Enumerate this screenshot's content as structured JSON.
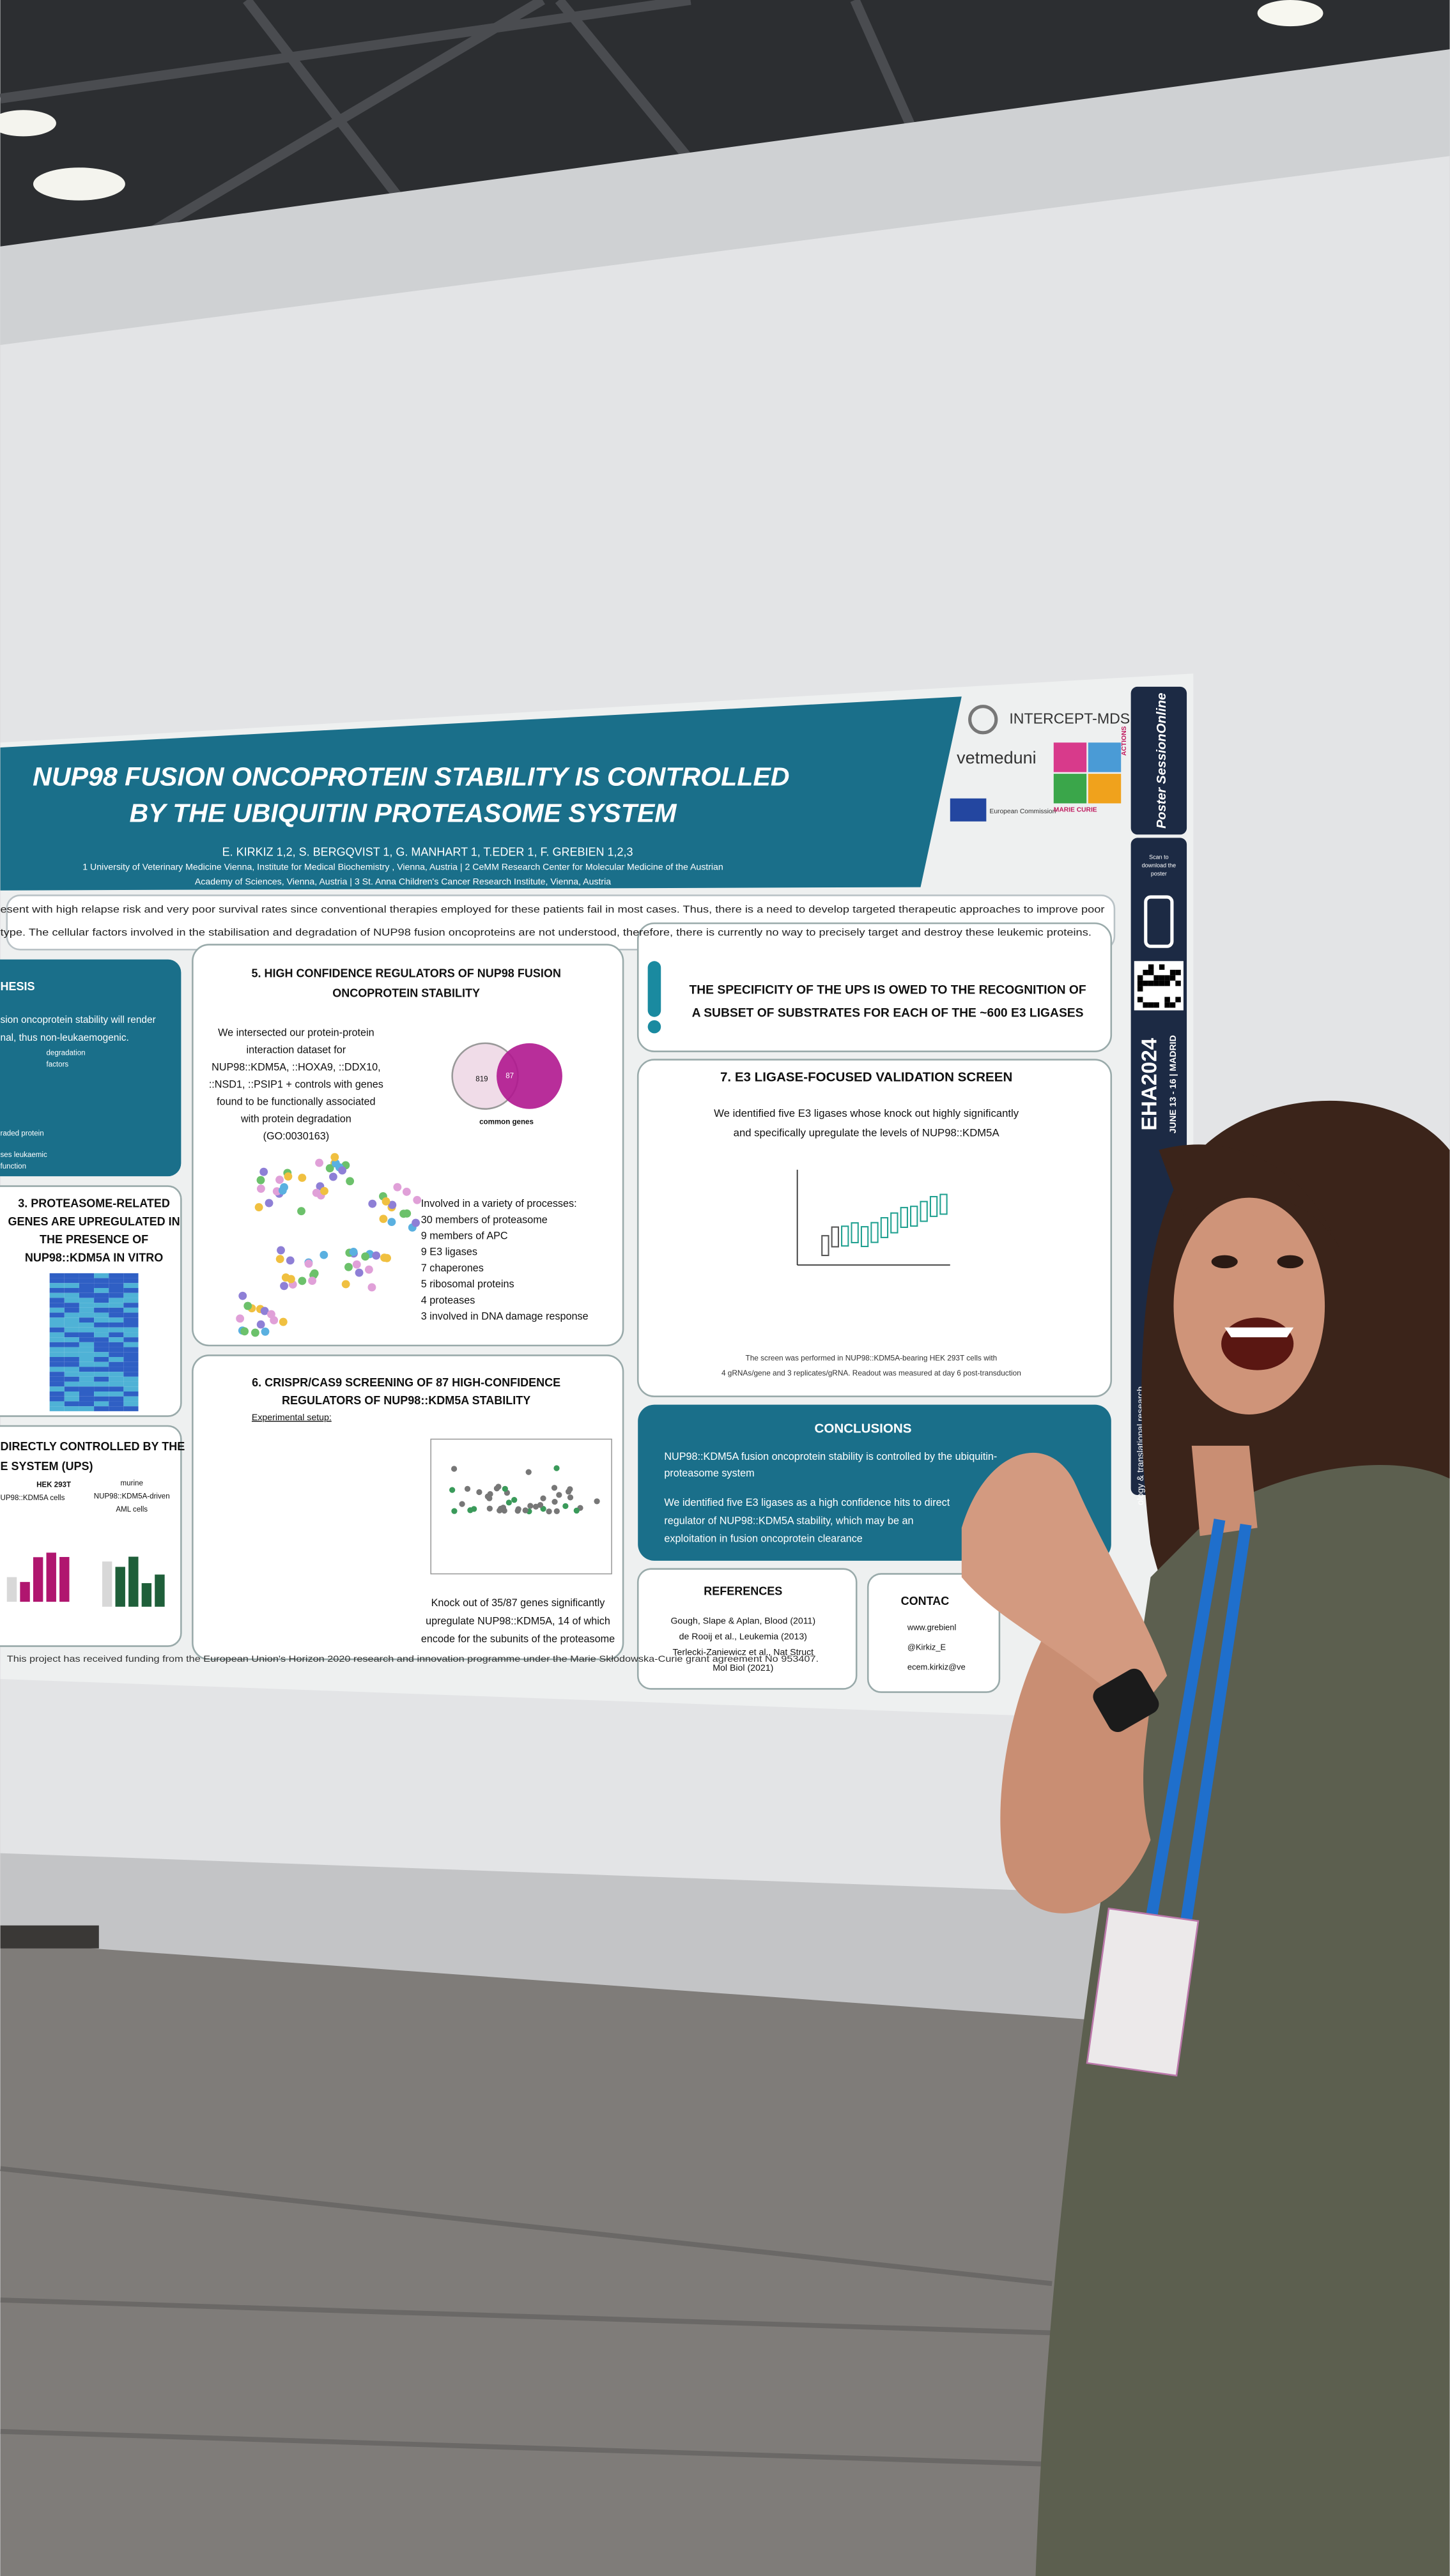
{
  "poster": {
    "title": [
      "NUP98 FUSION ONCOPROTEIN STABILITY IS CONTROLLED",
      "BY THE UBIQUITIN PROTEASOME SYSTEM"
    ],
    "authors": "E. KIRKIZ 1,2, S. BERGQVIST 1, G. MANHART 1, T.EDER 1, F. GREBIEN 1,2,3",
    "affiliations": [
      "1 University of Veterinary Medicine Vienna, Institute for Medical Biochemistry , Vienna, Austria | 2 CeMM Research Center for Molecular Medicine of the Austrian",
      "Academy of Sciences, Vienna, Austria | 3 St. Anna Children's Cancer Research Institute, Vienna, Austria"
    ],
    "logos": [
      "INTERCEPT-MDS",
      "vetmeduni",
      "European Commission",
      "MARIE CURIE",
      "ACTIONS"
    ],
    "intro": [
      "esent with high relapse risk and very poor survival rates since conventional therapies employed for these patients fail in most cases. Thus, there is a need to develop targeted therapeutic approaches to improve poor",
      "type. The cellular factors involved in the stabilisation and degradation of NUP98 fusion oncoproteins are not understood, therefore, there is currently no way to precisely target and destroy these leukemic proteins."
    ],
    "hypothesis": {
      "heading": "HESIS",
      "body": [
        "sion oncoprotein stability will render",
        "nal, thus non-leukaemogenic."
      ],
      "labels": [
        "degradation",
        "factors",
        "raded protein",
        "ses leukaemic",
        "function"
      ]
    },
    "section3": {
      "heading": [
        "3. PROTEASOME-RELATED",
        "GENES ARE UPREGULATED IN",
        "THE PRESENCE OF",
        "NUP98::KDM5A IN VITRO"
      ]
    },
    "section4": {
      "heading": [
        "DIRECTLY CONTROLLED BY THE",
        "E SYSTEM (UPS)"
      ],
      "labels": [
        "HEK 293T",
        "UP98::KDM5A cells",
        "murine",
        "NUP98::KDM5A-driven",
        "AML cells"
      ]
    },
    "section5": {
      "heading": [
        "5. HIGH CONFIDENCE REGULATORS OF NUP98 FUSION",
        "ONCOPROTEIN STABILITY"
      ],
      "body": [
        "We intersected our protein-protein",
        "interaction dataset for",
        "NUP98::KDM5A, ::HOXA9, ::DDX10,",
        "::NSD1, ::PSIP1 + controls with genes",
        "found to be functionally associated",
        "with protein degradation",
        "(GO:0030163)"
      ],
      "venn": [
        "common genes",
        "819",
        "87"
      ],
      "processes": [
        "Involved in a variety of processes:",
        "30 members of proteasome",
        "9 members of APC",
        "9 E3 ligases",
        "7 chaperones",
        "5 ribosomal proteins",
        "4 proteases",
        "3 involved in DNA damage response"
      ]
    },
    "section6": {
      "heading": [
        "6. CRISPR/CAS9 SCREENING OF 87 HIGH-CONFIDENCE",
        "REGULATORS OF NUP98::KDM5A STABILITY"
      ],
      "setup": "Experimental setup:",
      "body": [
        "Knock out of 35/87 genes significantly",
        "upregulate NUP98::KDM5A, 14 of which",
        "encode for the subunits of the proteasome"
      ]
    },
    "callout": [
      "THE SPECIFICITY OF THE UPS IS OWED TO THE RECOGNITION OF",
      "A SUBSET OF SUBSTRATES FOR EACH OF THE ~600 E3 LIGASES"
    ],
    "section7": {
      "heading": "7. E3 LIGASE-FOCUSED VALIDATION SCREEN",
      "body": [
        "We identified five E3 ligases whose knock out highly significantly",
        "and specifically upregulate the levels of NUP98::KDM5A"
      ],
      "note": [
        "The screen was performed in NUP98::KDM5A-bearing HEK 293T cells with",
        "4 gRNAs/gene and 3 replicates/gRNA. Readout was measured at day 6 post-transduction"
      ]
    },
    "conclusions": {
      "heading": "CONCLUSIONS",
      "body": [
        "NUP98::KDM5A fusion oncoprotein stability is controlled by the ubiquitin-",
        "proteasome system",
        "We identified five E3 ligases as a high confidence hits to direct",
        "regulator of NUP98::KDM5A stability, which may be an",
        "exploitation in fusion oncoprotein clearance"
      ]
    },
    "references": {
      "heading": "REFERENCES",
      "items": [
        "Gough, Slape & Aplan, Blood (2011)",
        "de Rooij et al., Leukemia (2013)",
        "Terlecki-Zaniewicz et al., Nat Struct",
        "Mol Biol (2021)"
      ]
    },
    "contact": {
      "heading": "CONTAC",
      "items": [
        "www.grebienl",
        "@Kirkiz_E",
        "ecem.kirkiz@ve"
      ]
    },
    "funding": "This project has received funding from the European Union's Horizon 2020 research and innovation programme under the Marie Skłodowska-Curie grant agreement No 953407."
  },
  "sidebar": {
    "brand": "Poster SessionOnline",
    "scan": [
      "Scan to",
      "download the",
      "poster"
    ],
    "event": "EHA2024",
    "dates": "JUNE 13 - 16 | MADRID",
    "track": "ology & translational research"
  }
}
